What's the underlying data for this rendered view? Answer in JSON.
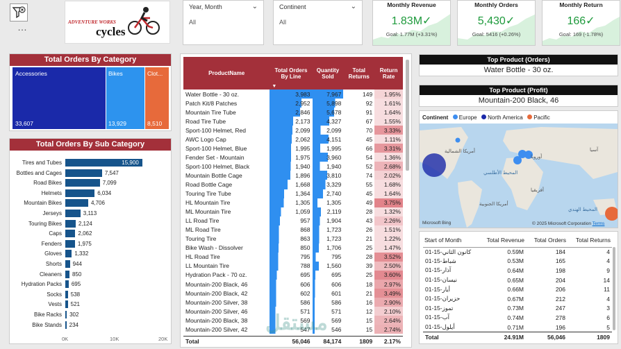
{
  "header": {
    "logo_text_1": "ADVENTURE WORKS",
    "logo_text_2": "cycles",
    "more_label": "…"
  },
  "slicers": [
    {
      "title": "Year, Month",
      "value": "All"
    },
    {
      "title": "Continent",
      "value": "All"
    }
  ],
  "kpis": [
    {
      "title": "Monthly Revenue",
      "value": "1.83M",
      "goal": "Goal: 1.77M (+3.31%)"
    },
    {
      "title": "Monthly Orders",
      "value": "5,430",
      "goal": "Goal: 5416 (+0.26%)"
    },
    {
      "title": "Monthly Return",
      "value": "166",
      "goal": "Goal: 169 (-1.78%)"
    }
  ],
  "category": {
    "title": "Total Orders By Category",
    "items": [
      {
        "name": "Accessories",
        "value": "33,607",
        "color": "#1a29a9"
      },
      {
        "name": "Bikes",
        "value": "13,929",
        "color": "#2d93ee"
      },
      {
        "name": "Clot...",
        "value": "8,510",
        "color": "#e76a3b"
      }
    ]
  },
  "subcategory": {
    "title": "Total Orders By Sub Category",
    "axis": [
      "0K",
      "10K",
      "20K"
    ],
    "items": [
      {
        "name": "Tires and Tubes",
        "value": "15,900",
        "raw": 15900
      },
      {
        "name": "Bottles and Cages",
        "value": "7,547",
        "raw": 7547
      },
      {
        "name": "Road Bikes",
        "value": "7,099",
        "raw": 7099
      },
      {
        "name": "Helmets",
        "value": "6,034",
        "raw": 6034
      },
      {
        "name": "Mountain Bikes",
        "value": "4,706",
        "raw": 4706
      },
      {
        "name": "Jerseys",
        "value": "3,113",
        "raw": 3113
      },
      {
        "name": "Touring Bikes",
        "value": "2,124",
        "raw": 2124
      },
      {
        "name": "Caps",
        "value": "2,062",
        "raw": 2062
      },
      {
        "name": "Fenders",
        "value": "1,975",
        "raw": 1975
      },
      {
        "name": "Gloves",
        "value": "1,332",
        "raw": 1332
      },
      {
        "name": "Shorts",
        "value": "944",
        "raw": 944
      },
      {
        "name": "Cleaners",
        "value": "850",
        "raw": 850
      },
      {
        "name": "Hydration Packs",
        "value": "695",
        "raw": 695
      },
      {
        "name": "Socks",
        "value": "538",
        "raw": 538
      },
      {
        "name": "Vests",
        "value": "521",
        "raw": 521
      },
      {
        "name": "Bike Racks",
        "value": "302",
        "raw": 302
      },
      {
        "name": "Bike Stands",
        "value": "234",
        "raw": 234
      }
    ]
  },
  "product_table": {
    "headers": [
      "ProductName",
      "Total Orders By Line",
      "Quantity Sold",
      "Total Returns",
      "Return Rate"
    ],
    "rows": [
      [
        "Water Bottle - 30 oz.",
        "3,983",
        "7,967",
        "149",
        "1.95%"
      ],
      [
        "Patch Kit/8 Patches",
        "2,952",
        "5,898",
        "92",
        "1.61%"
      ],
      [
        "Mountain Tire Tube",
        "2,846",
        "5,678",
        "91",
        "1.64%"
      ],
      [
        "Road Tire Tube",
        "2,173",
        "4,327",
        "67",
        "1.55%"
      ],
      [
        "Sport-100 Helmet, Red",
        "2,099",
        "2,099",
        "70",
        "3.33%"
      ],
      [
        "AWC Logo Cap",
        "2,062",
        "4,151",
        "45",
        "1.11%"
      ],
      [
        "Sport-100 Helmet, Blue",
        "1,995",
        "1,995",
        "66",
        "3.31%"
      ],
      [
        "Fender Set - Mountain",
        "1,975",
        "3,960",
        "54",
        "1.36%"
      ],
      [
        "Sport-100 Helmet, Black",
        "1,940",
        "1,940",
        "52",
        "2.68%"
      ],
      [
        "Mountain Bottle Cage",
        "1,896",
        "3,810",
        "74",
        "2.02%"
      ],
      [
        "Road Bottle Cage",
        "1,668",
        "3,329",
        "55",
        "1.68%"
      ],
      [
        "Touring Tire Tube",
        "1,364",
        "2,740",
        "45",
        "1.64%"
      ],
      [
        "HL Mountain Tire",
        "1,305",
        "1,305",
        "49",
        "3.75%"
      ],
      [
        "ML Mountain Tire",
        "1,059",
        "2,119",
        "28",
        "1.32%"
      ],
      [
        "LL Road Tire",
        "957",
        "1,904",
        "43",
        "2.26%"
      ],
      [
        "ML Road Tire",
        "868",
        "1,723",
        "26",
        "1.51%"
      ],
      [
        "Touring Tire",
        "863",
        "1,723",
        "21",
        "1.22%"
      ],
      [
        "Bike Wash - Dissolver",
        "850",
        "1,706",
        "25",
        "1.47%"
      ],
      [
        "HL Road Tire",
        "795",
        "795",
        "28",
        "3.52%"
      ],
      [
        "LL Mountain Tire",
        "788",
        "1,560",
        "39",
        "2.50%"
      ],
      [
        "Hydration Pack - 70 oz.",
        "695",
        "695",
        "25",
        "3.60%"
      ],
      [
        "Mountain-200 Black, 46",
        "606",
        "606",
        "18",
        "2.97%"
      ],
      [
        "Mountain-200 Black, 42",
        "602",
        "601",
        "21",
        "3.49%"
      ],
      [
        "Mountain-200 Silver, 38",
        "586",
        "586",
        "16",
        "2.90%"
      ],
      [
        "Mountain-200 Silver, 46",
        "571",
        "571",
        "12",
        "2.10%"
      ],
      [
        "Mountain-200 Black, 38",
        "569",
        "569",
        "15",
        "2.64%"
      ],
      [
        "Mountain-200 Silver, 42",
        "547",
        "546",
        "15",
        "2.74%"
      ]
    ],
    "total": [
      "Total",
      "56,046",
      "84,174",
      "1809",
      "2.17%"
    ]
  },
  "top_orders": {
    "title": "Top Product (Orders)",
    "value": "Water Bottle - 30 oz."
  },
  "top_profit": {
    "title": "Top Product (Profit)",
    "value": "Mountain-200 Black, 46"
  },
  "map": {
    "legend_title": "Continent",
    "legend": [
      {
        "name": "Europe",
        "color": "#3e8ef0"
      },
      {
        "name": "North America",
        "color": "#1a29a9"
      },
      {
        "name": "Pacific",
        "color": "#e76a3b"
      }
    ],
    "labels": [
      "أمريكا الشمالية",
      "أوروبا",
      "آسيا",
      "المحيط الأطلسي",
      "أفريقيا",
      "أمريكا الجنوبية",
      "المحيط الهندي"
    ],
    "bing": "Microsoft Bing",
    "copyright": "© 2025 Microsoft Corporation",
    "terms": "Terms"
  },
  "month_table": {
    "headers": [
      "Start of Month",
      "Total Revenue",
      "Total Orders",
      "Total Returns"
    ],
    "rows": [
      [
        "كانون الثاني-15-01",
        "0.59M",
        "184",
        "4"
      ],
      [
        "شباط-15-01",
        "0.53M",
        "165",
        "4"
      ],
      [
        "آذار-15-01",
        "0.64M",
        "198",
        "9"
      ],
      [
        "نيسان-15-01",
        "0.65M",
        "204",
        "14"
      ],
      [
        "أيار-15-01",
        "0.66M",
        "206",
        "11"
      ],
      [
        "حزيران-15-01",
        "0.67M",
        "212",
        "4"
      ],
      [
        "تموز-15-01",
        "0.73M",
        "247",
        "3"
      ],
      [
        "آب-15-01",
        "0.74M",
        "278",
        "6"
      ],
      [
        "أيلول-15-01",
        "0.71M",
        "196",
        "5"
      ]
    ],
    "total": [
      "Total",
      "24.91M",
      "56,046",
      "1809"
    ]
  },
  "watermark": "مستقل"
}
